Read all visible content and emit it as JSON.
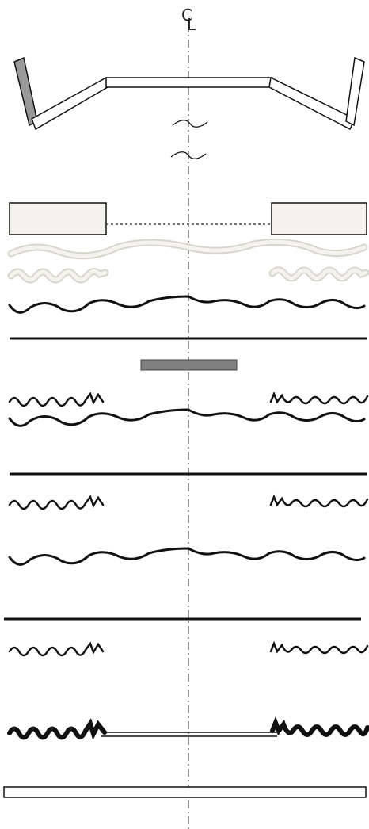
{
  "centerline": {
    "label_main": "C",
    "label_sub": "L"
  },
  "colors": {
    "stroke": "#111111",
    "board_fill": "#f4f2ee",
    "wall_fill": "#9a9a9a",
    "trim_fill": "#ffffff",
    "wavy_light": "#d8d6cc",
    "wavy_light_inner": "#f4f3ee",
    "bar_fill": "#808080",
    "centerline": "#555555"
  }
}
